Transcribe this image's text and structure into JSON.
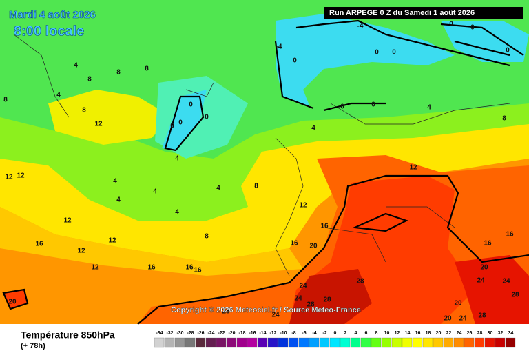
{
  "header": {
    "date": "Mardi 4 août 2026",
    "time": "8:00 locale",
    "run": "Run ARPEGE 0 Z du Samedi 1 août 2026",
    "copyright": "Copyright © 2026 Meteociel.fr / Source Meteo-France"
  },
  "footer": {
    "title": "Température 850hPa",
    "lead": "(+ 78h)"
  },
  "legend": {
    "ticks": [
      -34,
      -32,
      -30,
      -28,
      -26,
      -24,
      -22,
      -20,
      -18,
      -16,
      -14,
      -12,
      -10,
      -8,
      -6,
      -4,
      -2,
      0,
      2,
      4,
      6,
      8,
      10,
      12,
      14,
      16,
      18,
      20,
      22,
      24,
      26,
      28,
      30,
      32,
      34
    ],
    "colors": [
      "#d2d2d2",
      "#b4b4b4",
      "#969696",
      "#787878",
      "#5a2a3c",
      "#641e50",
      "#781464",
      "#8c0a78",
      "#a0008c",
      "#b400a0",
      "#5a00b4",
      "#2814c8",
      "#0032dc",
      "#0050f0",
      "#0078ff",
      "#00a0ff",
      "#00c8ff",
      "#00e6ff",
      "#00ffd2",
      "#00ff8c",
      "#32ff46",
      "#64ff14",
      "#96ff00",
      "#c8ff00",
      "#f0ff00",
      "#ffff00",
      "#ffe600",
      "#ffc800",
      "#ffaa00",
      "#ff8c00",
      "#ff6400",
      "#ff3c00",
      "#e61400",
      "#c80000",
      "#960000"
    ]
  },
  "contour_labels": [
    -4,
    -4,
    0,
    0,
    0,
    0,
    0,
    0,
    0,
    0,
    0,
    0,
    0,
    0,
    4,
    4,
    4,
    4,
    4,
    4,
    4,
    4,
    4,
    4,
    8,
    8,
    8,
    8,
    8,
    8,
    8,
    8,
    12,
    12,
    12,
    12,
    12,
    12,
    12,
    12,
    12,
    16,
    16,
    16,
    16,
    16,
    16,
    16,
    16,
    20,
    20,
    20,
    20,
    20,
    24,
    24,
    24,
    24,
    24,
    24,
    28,
    28,
    28,
    28,
    28,
    28
  ]
}
